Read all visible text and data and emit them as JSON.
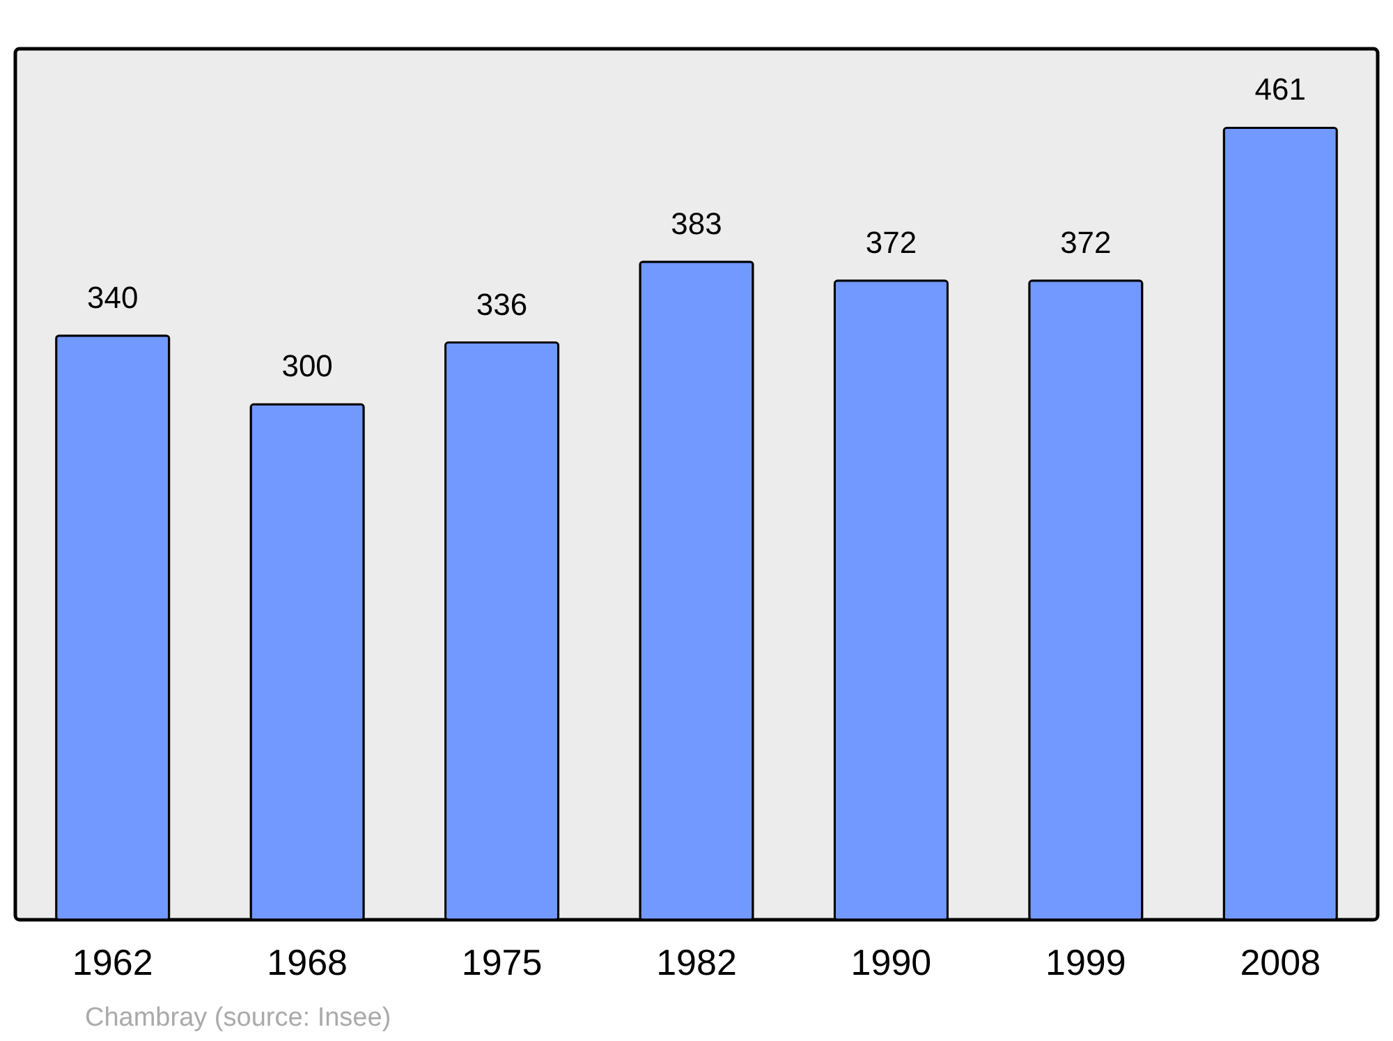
{
  "chart_data": {
    "type": "bar",
    "categories": [
      "1962",
      "1968",
      "1975",
      "1982",
      "1990",
      "1999",
      "2008"
    ],
    "values": [
      340,
      300,
      336,
      383,
      372,
      372,
      461
    ],
    "color": "#7299ff",
    "ylim": [
      0,
      507
    ],
    "data_labels": true,
    "tick_labels": "x",
    "annotations": [
      "Chambray    (source: Insee)"
    ]
  }
}
